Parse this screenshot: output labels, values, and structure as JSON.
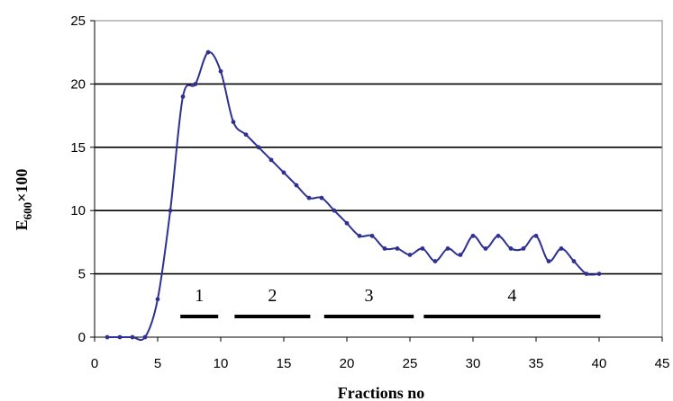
{
  "chart_data": {
    "type": "line",
    "xlabel": "Fractions no",
    "ylabel": {
      "base": "E",
      "subscript": "600",
      "suffix": "×100"
    },
    "xlim": [
      0,
      45
    ],
    "ylim": [
      0,
      25
    ],
    "x_ticks": [
      0,
      5,
      10,
      15,
      20,
      25,
      30,
      35,
      40,
      45
    ],
    "y_ticks": [
      0,
      5,
      10,
      15,
      20,
      25
    ],
    "grid": "horizontal",
    "series_color": "#2e3192",
    "series": [
      {
        "x": [
          1,
          2,
          3,
          4,
          5,
          6,
          7,
          8,
          9,
          10,
          11,
          12,
          13,
          14,
          15,
          16,
          17,
          18,
          19,
          20,
          21,
          22,
          23,
          24,
          25,
          26,
          27,
          28,
          29,
          30,
          31,
          32,
          33,
          34,
          35,
          36,
          37,
          38,
          39,
          40
        ],
        "y": [
          0,
          0,
          0,
          0,
          3,
          10,
          19,
          20,
          22.5,
          21,
          17,
          16,
          15,
          14,
          13,
          12,
          11,
          11,
          10,
          9,
          8,
          8,
          7,
          7,
          6.5,
          7,
          6,
          7,
          6.5,
          8,
          7,
          8,
          7,
          7,
          8,
          6,
          7,
          6,
          5,
          5
        ]
      }
    ],
    "fractions": [
      {
        "label": "1",
        "from": 6.8,
        "to": 9.8
      },
      {
        "label": "2",
        "from": 11.1,
        "to": 17.1
      },
      {
        "label": "3",
        "from": 18.2,
        "to": 25.3
      },
      {
        "label": "4",
        "from": 26.1,
        "to": 40.1
      }
    ]
  }
}
